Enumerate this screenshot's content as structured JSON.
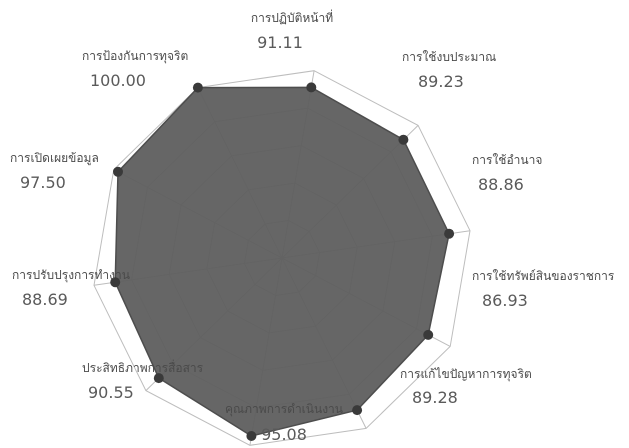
{
  "chart_data": {
    "type": "radar",
    "title": "",
    "categories": [
      "การปฏิบัติหน้าที่",
      "การใช้งบประมาณ",
      "การใช้อำนาจ",
      "การใช้ทรัพย์สินของราชการ",
      "การแก้ไขปัญหาการทุจริต",
      "คุณภาพการดำเนินงาน",
      "ประสิทธิภาพการสื่อสาร",
      "การปรับปรุงการทำงาน",
      "การเปิดเผยข้อมูล",
      "การป้องกันการทุจริต"
    ],
    "value_labels": [
      "91.11",
      "89.23",
      "88.86",
      "86.93",
      "89.28",
      "95.08",
      "90.55",
      "88.69",
      "97.50",
      "100.00"
    ],
    "series": [
      {
        "values": [
          91.11,
          89.23,
          88.86,
          86.93,
          89.28,
          95.08,
          90.55,
          88.69,
          97.5,
          100.0
        ],
        "color": "#5e5e5e"
      }
    ],
    "rlim": [
      0,
      100
    ],
    "grid": true,
    "marker_color": "#3a3a3a",
    "grid_color": "#bdbdbd",
    "label_color": "#4a4a4a"
  }
}
